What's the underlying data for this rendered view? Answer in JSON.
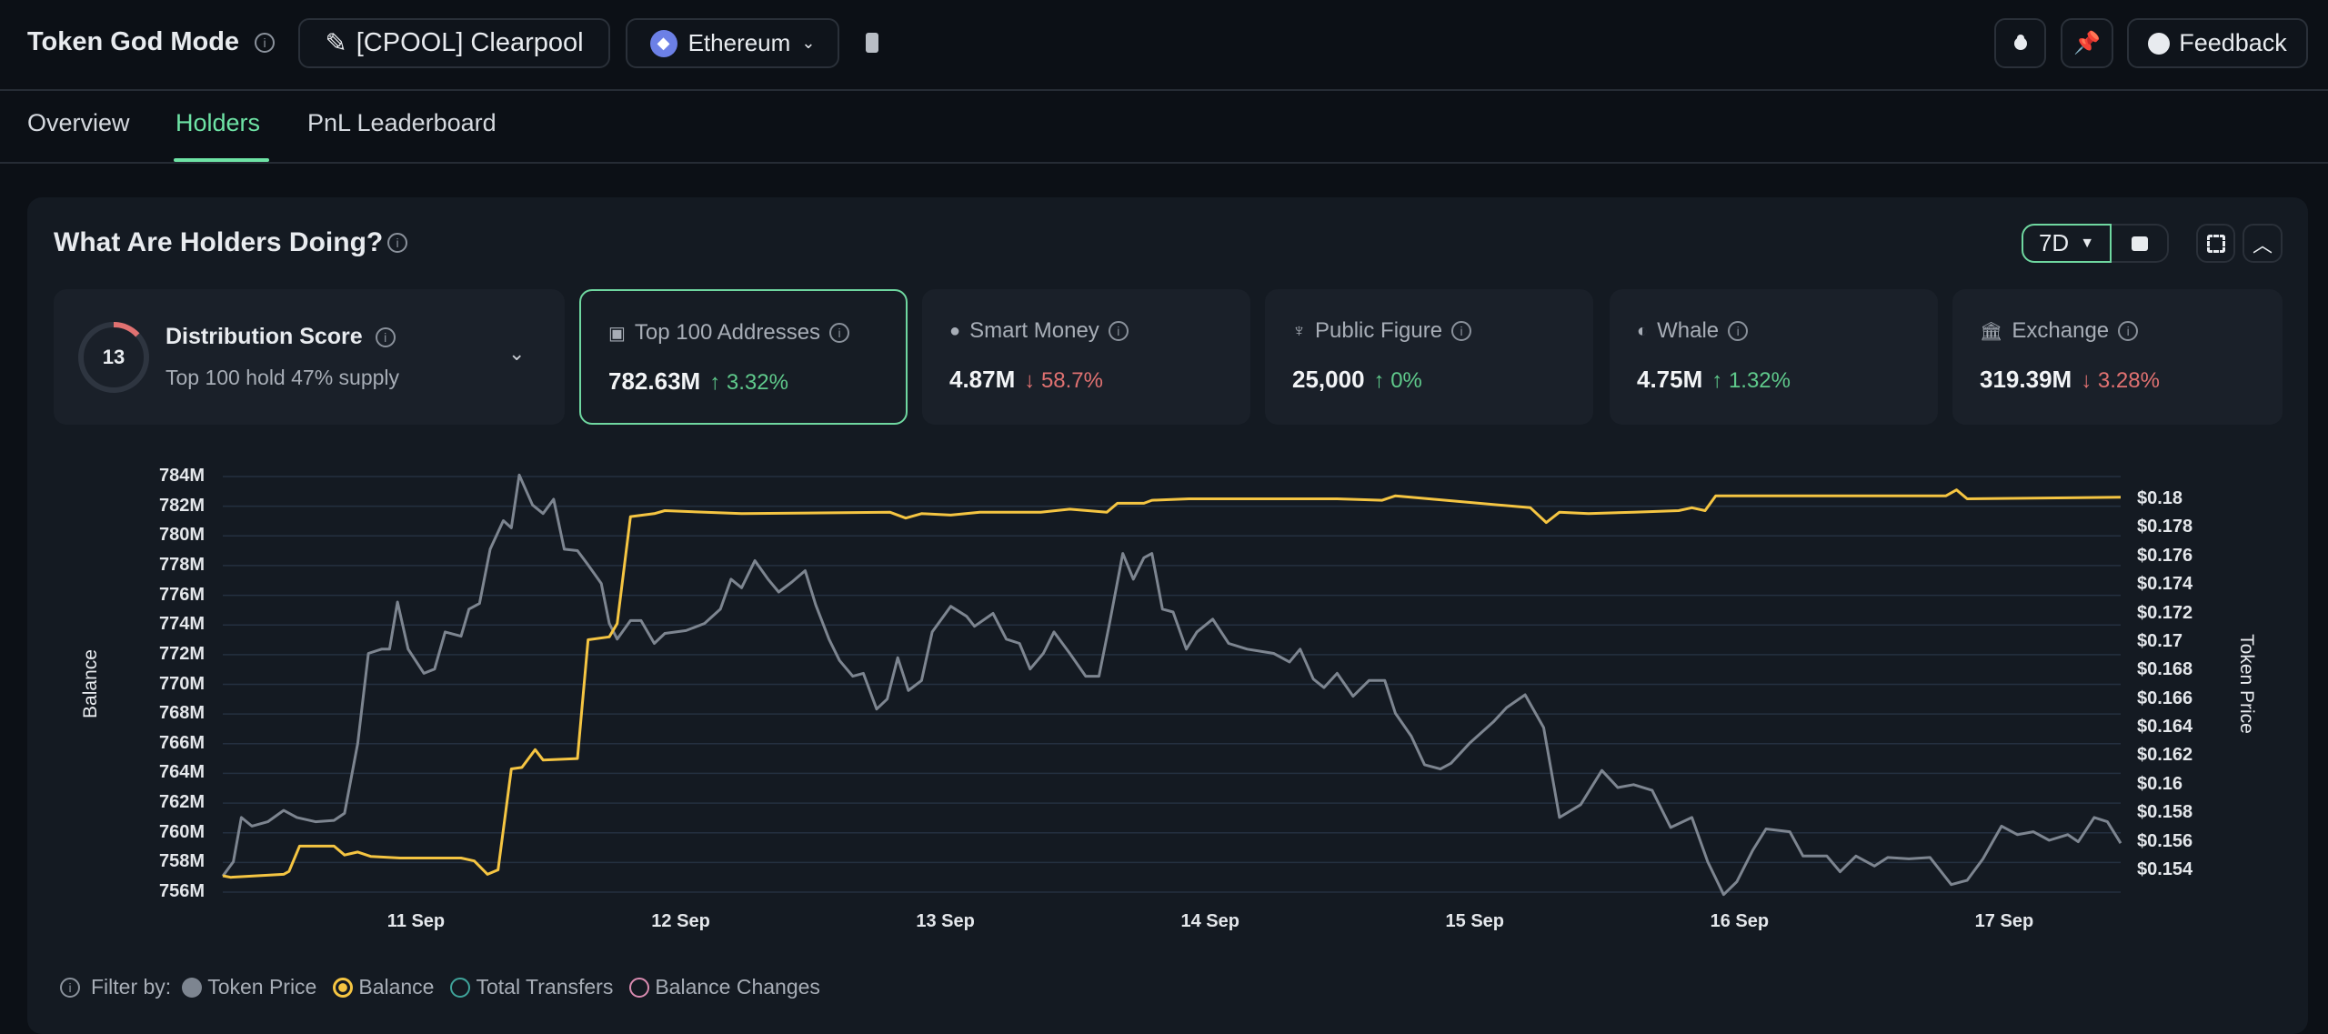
{
  "header": {
    "title": "Token God Mode",
    "token_label": "[CPOOL] Clearpool",
    "chain": "Ethereum",
    "feedback": "Feedback"
  },
  "tabs": [
    {
      "label": "Overview"
    },
    {
      "label": "Holders",
      "active": true
    },
    {
      "label": "PnL Leaderboard"
    }
  ],
  "panel": {
    "title": "What Are Holders Doing?",
    "range": "7D"
  },
  "distribution": {
    "score": "13",
    "score_fraction": 0.13,
    "title": "Distribution Score",
    "subtitle": "Top 100 hold 47% supply"
  },
  "cards": [
    {
      "label": "Top 100 Addresses",
      "value": "782.63M",
      "change": "3.32%",
      "dir": "up",
      "icon": "money-icon"
    },
    {
      "label": "Smart Money",
      "value": "4.87M",
      "change": "58.7%",
      "dir": "down",
      "icon": "sunglasses-icon"
    },
    {
      "label": "Public Figure",
      "value": "25,000",
      "change": "0%",
      "dir": "up",
      "icon": "speaker-icon"
    },
    {
      "label": "Whale",
      "value": "4.75M",
      "change": "1.32%",
      "dir": "up",
      "icon": "whale-icon"
    },
    {
      "label": "Exchange",
      "value": "319.39M",
      "change": "3.28%",
      "dir": "down",
      "icon": "bank-icon"
    }
  ],
  "legend": {
    "prefix": "Filter by:",
    "items": [
      {
        "label": "Token Price",
        "color": "#7d8590",
        "state": "filled"
      },
      {
        "label": "Balance",
        "color": "#f5c542",
        "state": "selected"
      },
      {
        "label": "Total Transfers",
        "color": "#3fa39a",
        "state": "off"
      },
      {
        "label": "Balance Changes",
        "color": "#d98bb0",
        "state": "off"
      }
    ]
  },
  "chart_data": {
    "type": "line",
    "ylabel": "Balance",
    "y2label": "Token Price",
    "ylim": [
      756,
      784
    ],
    "y2lim": [
      0.154,
      0.18
    ],
    "xlim": [
      10.27,
      17.44
    ],
    "yticks": [
      "784M",
      "782M",
      "780M",
      "778M",
      "776M",
      "774M",
      "772M",
      "770M",
      "768M",
      "766M",
      "764M",
      "762M",
      "760M",
      "758M",
      "756M"
    ],
    "y2ticks": [
      "$0.18",
      "$0.178",
      "$0.176",
      "$0.174",
      "$0.172",
      "$0.17",
      "$0.168",
      "$0.166",
      "$0.164",
      "$0.162",
      "$0.16",
      "$0.158",
      "$0.156",
      "$0.154"
    ],
    "xticks": [
      {
        "label": "11 Sep",
        "x": 11
      },
      {
        "label": "12 Sep",
        "x": 12
      },
      {
        "label": "13 Sep",
        "x": 13
      },
      {
        "label": "14 Sep",
        "x": 14
      },
      {
        "label": "15 Sep",
        "x": 15
      },
      {
        "label": "16 Sep",
        "x": 16
      },
      {
        "label": "17 Sep",
        "x": 17
      }
    ],
    "series": [
      {
        "name": "Balance",
        "color": "#f5c542",
        "axis": "left",
        "points": [
          [
            10.27,
            757.1
          ],
          [
            10.3,
            757.0
          ],
          [
            10.5,
            757.2
          ],
          [
            10.52,
            757.4
          ],
          [
            10.56,
            759.1
          ],
          [
            10.69,
            759.1
          ],
          [
            10.73,
            758.5
          ],
          [
            10.78,
            758.7
          ],
          [
            10.83,
            758.4
          ],
          [
            10.94,
            758.3
          ],
          [
            11.17,
            758.3
          ],
          [
            11.22,
            758.1
          ],
          [
            11.27,
            757.2
          ],
          [
            11.31,
            757.5
          ],
          [
            11.36,
            764.3
          ],
          [
            11.4,
            764.4
          ],
          [
            11.45,
            765.6
          ],
          [
            11.48,
            764.9
          ],
          [
            11.61,
            765.0
          ],
          [
            11.65,
            773.0
          ],
          [
            11.73,
            773.2
          ],
          [
            11.76,
            774.1
          ],
          [
            11.81,
            781.3
          ],
          [
            11.9,
            781.5
          ],
          [
            11.94,
            781.7
          ],
          [
            12.23,
            781.5
          ],
          [
            12.79,
            781.6
          ],
          [
            12.85,
            781.2
          ],
          [
            12.91,
            781.5
          ],
          [
            13.02,
            781.4
          ],
          [
            13.13,
            781.6
          ],
          [
            13.36,
            781.6
          ],
          [
            13.47,
            781.8
          ],
          [
            13.61,
            781.6
          ],
          [
            13.65,
            782.2
          ],
          [
            13.75,
            782.2
          ],
          [
            13.78,
            782.4
          ],
          [
            13.92,
            782.5
          ],
          [
            14.48,
            782.5
          ],
          [
            14.65,
            782.4
          ],
          [
            14.7,
            782.7
          ],
          [
            15.21,
            781.9
          ],
          [
            15.27,
            780.9
          ],
          [
            15.32,
            781.6
          ],
          [
            15.43,
            781.5
          ],
          [
            15.6,
            781.6
          ],
          [
            15.77,
            781.7
          ],
          [
            15.82,
            781.9
          ],
          [
            15.87,
            781.7
          ],
          [
            15.91,
            782.7
          ],
          [
            16.38,
            782.7
          ],
          [
            16.78,
            782.7
          ],
          [
            16.82,
            783.1
          ],
          [
            16.86,
            782.5
          ],
          [
            17.44,
            782.6
          ]
        ]
      },
      {
        "name": "Token Price",
        "color": "#7d8590",
        "axis": "right",
        "points": [
          [
            10.27,
            0.1536
          ],
          [
            10.31,
            0.1546
          ],
          [
            10.34,
            0.1577
          ],
          [
            10.38,
            0.1571
          ],
          [
            10.44,
            0.1574
          ],
          [
            10.5,
            0.1582
          ],
          [
            10.55,
            0.1577
          ],
          [
            10.62,
            0.1574
          ],
          [
            10.69,
            0.1575
          ],
          [
            10.73,
            0.158
          ],
          [
            10.78,
            0.1629
          ],
          [
            10.82,
            0.1692
          ],
          [
            10.87,
            0.1695
          ],
          [
            10.9,
            0.1695
          ],
          [
            10.93,
            0.1728
          ],
          [
            10.97,
            0.1695
          ],
          [
            11.03,
            0.1678
          ],
          [
            11.07,
            0.1681
          ],
          [
            11.11,
            0.1707
          ],
          [
            11.17,
            0.1704
          ],
          [
            11.2,
            0.1723
          ],
          [
            11.24,
            0.1727
          ],
          [
            11.28,
            0.1765
          ],
          [
            11.33,
            0.1785
          ],
          [
            11.36,
            0.178
          ],
          [
            11.39,
            0.1817
          ],
          [
            11.44,
            0.1796
          ],
          [
            11.48,
            0.179
          ],
          [
            11.52,
            0.18
          ],
          [
            11.56,
            0.1765
          ],
          [
            11.61,
            0.1764
          ],
          [
            11.65,
            0.1754
          ],
          [
            11.7,
            0.1741
          ],
          [
            11.73,
            0.1713
          ],
          [
            11.76,
            0.1702
          ],
          [
            11.81,
            0.1715
          ],
          [
            11.85,
            0.1715
          ],
          [
            11.9,
            0.1699
          ],
          [
            11.94,
            0.1706
          ],
          [
            12.02,
            0.1708
          ],
          [
            12.09,
            0.1713
          ],
          [
            12.15,
            0.1723
          ],
          [
            12.19,
            0.1744
          ],
          [
            12.23,
            0.1738
          ],
          [
            12.28,
            0.1757
          ],
          [
            12.33,
            0.1744
          ],
          [
            12.37,
            0.1735
          ],
          [
            12.42,
            0.1742
          ],
          [
            12.47,
            0.175
          ],
          [
            12.51,
            0.1726
          ],
          [
            12.56,
            0.1702
          ],
          [
            12.6,
            0.1687
          ],
          [
            12.65,
            0.1676
          ],
          [
            12.69,
            0.1678
          ],
          [
            12.74,
            0.1653
          ],
          [
            12.78,
            0.166
          ],
          [
            12.82,
            0.1689
          ],
          [
            12.86,
            0.1666
          ],
          [
            12.91,
            0.1673
          ],
          [
            12.95,
            0.1707
          ],
          [
            13.02,
            0.1725
          ],
          [
            13.08,
            0.1718
          ],
          [
            13.11,
            0.1711
          ],
          [
            13.18,
            0.172
          ],
          [
            13.23,
            0.1702
          ],
          [
            13.28,
            0.1699
          ],
          [
            13.32,
            0.1681
          ],
          [
            13.37,
            0.1692
          ],
          [
            13.41,
            0.1707
          ],
          [
            13.47,
            0.1692
          ],
          [
            13.53,
            0.1676
          ],
          [
            13.58,
            0.1676
          ],
          [
            13.62,
            0.1713
          ],
          [
            13.67,
            0.1762
          ],
          [
            13.71,
            0.1744
          ],
          [
            13.75,
            0.1759
          ],
          [
            13.78,
            0.1762
          ],
          [
            13.82,
            0.1723
          ],
          [
            13.86,
            0.1721
          ],
          [
            13.91,
            0.1695
          ],
          [
            13.95,
            0.1707
          ],
          [
            14.01,
            0.1716
          ],
          [
            14.07,
            0.1699
          ],
          [
            14.14,
            0.1695
          ],
          [
            14.24,
            0.1692
          ],
          [
            14.3,
            0.1686
          ],
          [
            14.34,
            0.1695
          ],
          [
            14.39,
            0.1674
          ],
          [
            14.43,
            0.1668
          ],
          [
            14.48,
            0.1678
          ],
          [
            14.54,
            0.1662
          ],
          [
            14.6,
            0.1673
          ],
          [
            14.66,
            0.1673
          ],
          [
            14.7,
            0.165
          ],
          [
            14.76,
            0.1634
          ],
          [
            14.81,
            0.1614
          ],
          [
            14.87,
            0.1611
          ],
          [
            14.91,
            0.1615
          ],
          [
            14.98,
            0.1629
          ],
          [
            15.07,
            0.1644
          ],
          [
            15.12,
            0.1654
          ],
          [
            15.19,
            0.1663
          ],
          [
            15.26,
            0.164
          ],
          [
            15.32,
            0.1577
          ],
          [
            15.4,
            0.1586
          ],
          [
            15.48,
            0.161
          ],
          [
            15.54,
            0.1598
          ],
          [
            15.6,
            0.16
          ],
          [
            15.67,
            0.1596
          ],
          [
            15.74,
            0.157
          ],
          [
            15.82,
            0.1577
          ],
          [
            15.88,
            0.1546
          ],
          [
            15.94,
            0.1523
          ],
          [
            15.99,
            0.1532
          ],
          [
            16.05,
            0.1554
          ],
          [
            16.1,
            0.1569
          ],
          [
            16.19,
            0.1567
          ],
          [
            16.24,
            0.155
          ],
          [
            16.33,
            0.155
          ],
          [
            16.38,
            0.1539
          ],
          [
            16.44,
            0.155
          ],
          [
            16.51,
            0.1543
          ],
          [
            16.56,
            0.1549
          ],
          [
            16.64,
            0.1548
          ],
          [
            16.72,
            0.1549
          ],
          [
            16.8,
            0.153
          ],
          [
            16.86,
            0.1533
          ],
          [
            16.92,
            0.1548
          ],
          [
            16.99,
            0.1571
          ],
          [
            17.05,
            0.1565
          ],
          [
            17.11,
            0.1567
          ],
          [
            17.17,
            0.1561
          ],
          [
            17.24,
            0.1565
          ],
          [
            17.28,
            0.156
          ],
          [
            17.34,
            0.1577
          ],
          [
            17.39,
            0.1574
          ],
          [
            17.44,
            0.1559
          ]
        ]
      }
    ]
  }
}
